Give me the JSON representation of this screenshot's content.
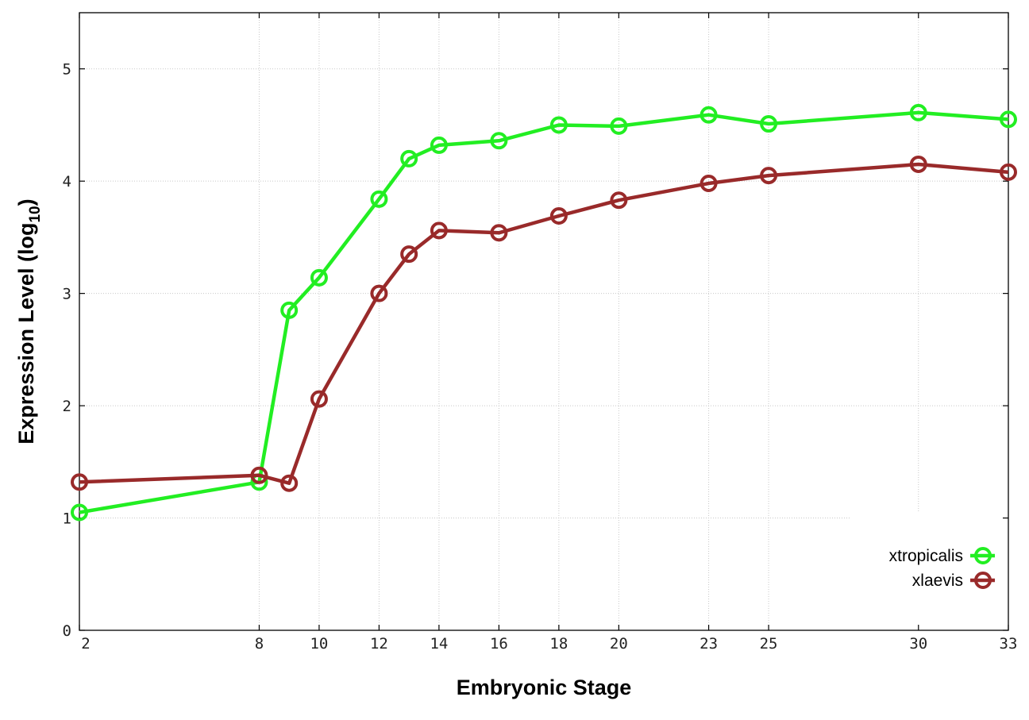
{
  "chart_data": {
    "type": "line",
    "title": "",
    "xlabel": "Embryonic Stage",
    "ylabel_main": "Expression Level (log",
    "ylabel_sub": "10",
    "ylabel_close": ")",
    "x": [
      2,
      8,
      9,
      10,
      12,
      13,
      14,
      16,
      18,
      20,
      23,
      25,
      30,
      33
    ],
    "xticks": [
      "2",
      "8",
      "10",
      "12",
      "14",
      "16",
      "18",
      "20",
      "23",
      "25",
      "30",
      "33"
    ],
    "xtick_values": [
      2,
      8,
      10,
      12,
      14,
      16,
      18,
      20,
      23,
      25,
      30,
      33
    ],
    "yticks": [
      "0",
      "1",
      "2",
      "3",
      "4",
      "5"
    ],
    "ytick_values": [
      0,
      1,
      2,
      3,
      4,
      5
    ],
    "xlim": [
      2,
      33
    ],
    "ylim": [
      0,
      5.5
    ],
    "grid": true,
    "legend_position": "bottom-right",
    "series": [
      {
        "name": "xtropicalis",
        "color": "#22ee22",
        "values": [
          1.05,
          1.32,
          2.85,
          3.14,
          3.84,
          4.2,
          4.32,
          4.36,
          4.5,
          4.49,
          4.59,
          4.51,
          4.61,
          4.55
        ]
      },
      {
        "name": "xlaevis",
        "color": "#992a2a",
        "values": [
          1.32,
          1.38,
          1.31,
          2.06,
          3.0,
          3.35,
          3.56,
          3.54,
          3.69,
          3.83,
          3.98,
          4.05,
          4.15,
          4.08
        ]
      }
    ]
  }
}
